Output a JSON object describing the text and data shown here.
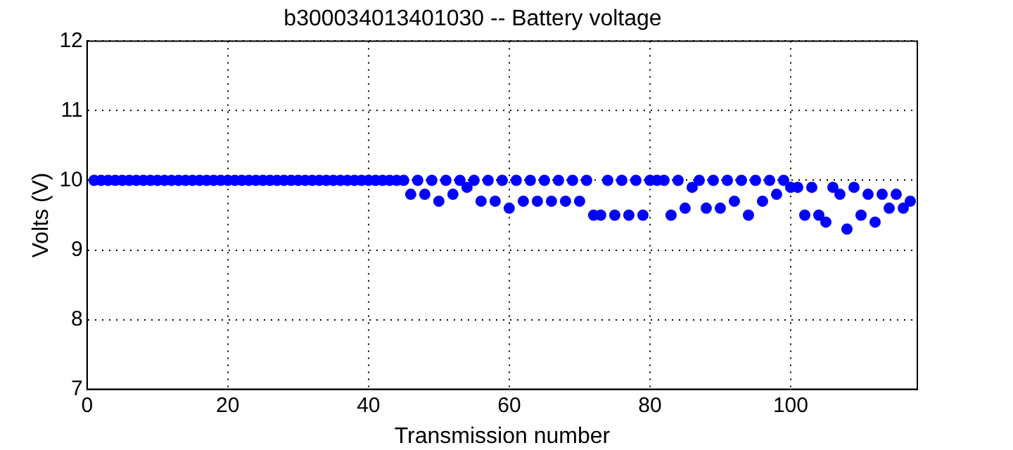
{
  "chart_data": {
    "type": "scatter",
    "title": "b300034013401030 -- Battery voltage",
    "xlabel": "Transmission number",
    "ylabel": "Volts (V)",
    "x": [
      1,
      2,
      3,
      4,
      5,
      6,
      7,
      8,
      9,
      10,
      11,
      12,
      13,
      14,
      15,
      16,
      17,
      18,
      19,
      20,
      21,
      22,
      23,
      24,
      25,
      26,
      27,
      28,
      29,
      30,
      31,
      32,
      33,
      34,
      35,
      36,
      37,
      38,
      39,
      40,
      41,
      42,
      43,
      44,
      45,
      46,
      47,
      48,
      49,
      50,
      51,
      52,
      53,
      54,
      55,
      56,
      57,
      58,
      59,
      60,
      61,
      62,
      63,
      64,
      65,
      66,
      67,
      68,
      69,
      70,
      71,
      72,
      73,
      74,
      75,
      76,
      77,
      78,
      79,
      80,
      81,
      82,
      83,
      84,
      85,
      86,
      87,
      88,
      89,
      90,
      91,
      92,
      93,
      94,
      95,
      96,
      97,
      98,
      99,
      100,
      101,
      102,
      103,
      104,
      105,
      106,
      107,
      108,
      109,
      110,
      111,
      112,
      113,
      114,
      115,
      116,
      117
    ],
    "series": [
      {
        "color": "#0000ff",
        "values": [
          10,
          10,
          10,
          10,
          10,
          10,
          10,
          10,
          10,
          10,
          10,
          10,
          10,
          10,
          10,
          10,
          10,
          10,
          10,
          10,
          10,
          10,
          10,
          10,
          10,
          10,
          10,
          10,
          10,
          10,
          10,
          10,
          10,
          10,
          10,
          10,
          10,
          10,
          10,
          10,
          10,
          10,
          10,
          10,
          10,
          9.8,
          10,
          9.8,
          10,
          9.7,
          10,
          9.8,
          10,
          9.9,
          10,
          9.7,
          10,
          9.7,
          10,
          9.6,
          10,
          9.7,
          10,
          9.7,
          10,
          9.7,
          10,
          9.7,
          10,
          9.7,
          10,
          9.5,
          9.5,
          10,
          9.5,
          10,
          9.5,
          10,
          9.5,
          10,
          10,
          10,
          9.5,
          10,
          9.6,
          9.9,
          10,
          9.6,
          10,
          9.6,
          10,
          9.7,
          10,
          9.5,
          10,
          9.7,
          10,
          9.8,
          10,
          9.9,
          9.9,
          9.5,
          9.9,
          9.5,
          9.4,
          9.9,
          9.8,
          9.3,
          9.9,
          9.5,
          9.8,
          9.4,
          9.8,
          9.6,
          9.8,
          9.6,
          9.7
        ]
      }
    ],
    "xlim": [
      0,
      118
    ],
    "xticks": [
      0,
      20,
      40,
      60,
      80,
      100
    ],
    "ylim": [
      7,
      12
    ],
    "yticks": [
      7,
      8,
      9,
      10,
      11,
      12
    ],
    "grid": true,
    "marker": "circle",
    "legend": false
  }
}
